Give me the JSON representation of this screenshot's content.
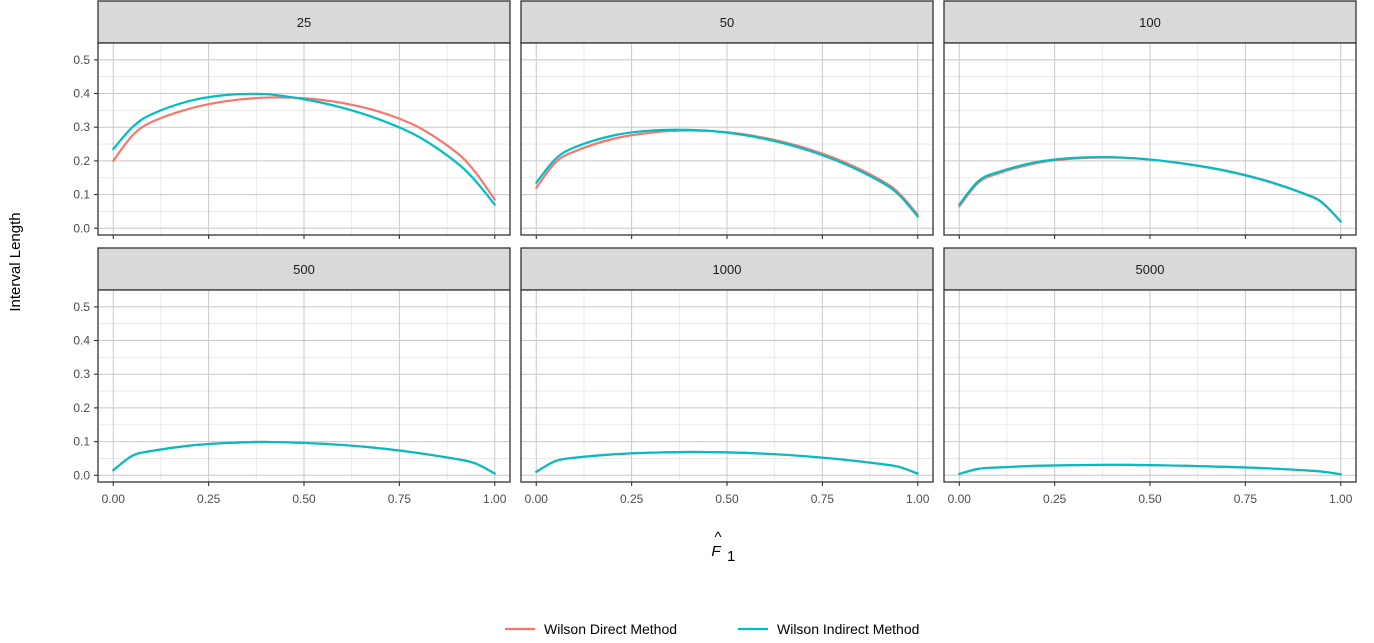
{
  "chart_data": {
    "type": "line",
    "facet_layout": "2 rows x 3 columns",
    "ylabel": "Interval Length",
    "xlabel_symbol": "F",
    "xlabel_subscript": "1",
    "xlim": [
      0,
      1
    ],
    "ylim": [
      0,
      0.5
    ],
    "x_ticks": [
      "0.00",
      "0.25",
      "0.50",
      "0.75",
      "1.00"
    ],
    "x_tick_values": [
      0,
      0.25,
      0.5,
      0.75,
      1.0
    ],
    "y_ticks": [
      "0.0",
      "0.1",
      "0.2",
      "0.3",
      "0.4",
      "0.5"
    ],
    "y_tick_values": [
      0,
      0.1,
      0.2,
      0.3,
      0.4,
      0.5
    ],
    "grid": true,
    "legend_position": "bottom",
    "series_styles": [
      {
        "name": "Wilson Direct Method",
        "color": "#F8766D"
      },
      {
        "name": "Wilson Indirect Method",
        "color": "#00BFC4"
      }
    ],
    "x": [
      0,
      0.05,
      0.1,
      0.2,
      0.3,
      0.4,
      0.5,
      0.6,
      0.7,
      0.8,
      0.9,
      0.95,
      1.0
    ],
    "panels": [
      {
        "label": "25",
        "series": [
          {
            "name": "Wilson Direct Method",
            "values": [
              0.2,
              0.275,
              0.315,
              0.355,
              0.378,
              0.388,
              0.386,
              0.372,
              0.345,
              0.3,
              0.225,
              0.165,
              0.085
            ]
          },
          {
            "name": "Wilson Indirect Method",
            "values": [
              0.235,
              0.3,
              0.338,
              0.378,
              0.396,
              0.398,
              0.383,
              0.358,
              0.322,
              0.272,
              0.195,
              0.14,
              0.07
            ]
          }
        ]
      },
      {
        "label": "50",
        "series": [
          {
            "name": "Wilson Direct Method",
            "values": [
              0.12,
              0.195,
              0.228,
              0.265,
              0.284,
              0.29,
              0.285,
              0.268,
              0.24,
              0.2,
              0.145,
              0.105,
              0.04
            ]
          },
          {
            "name": "Wilson Indirect Method",
            "values": [
              0.135,
              0.205,
              0.24,
              0.275,
              0.29,
              0.292,
              0.284,
              0.265,
              0.236,
              0.195,
              0.14,
              0.1,
              0.035
            ]
          }
        ]
      },
      {
        "label": "100",
        "series": [
          {
            "name": "Wilson Direct Method",
            "values": [
              0.065,
              0.135,
              0.162,
              0.193,
              0.207,
              0.21,
              0.204,
              0.19,
              0.171,
              0.143,
              0.105,
              0.078,
              0.02
            ]
          },
          {
            "name": "Wilson Indirect Method",
            "values": [
              0.07,
              0.14,
              0.166,
              0.196,
              0.209,
              0.211,
              0.204,
              0.19,
              0.17,
              0.142,
              0.104,
              0.077,
              0.02
            ]
          }
        ]
      },
      {
        "label": "500",
        "series": [
          {
            "name": "Wilson Direct Method",
            "values": [
              0.015,
              0.058,
              0.072,
              0.088,
              0.096,
              0.099,
              0.096,
              0.09,
              0.08,
              0.066,
              0.048,
              0.035,
              0.005
            ]
          },
          {
            "name": "Wilson Indirect Method",
            "values": [
              0.015,
              0.058,
              0.072,
              0.088,
              0.096,
              0.099,
              0.096,
              0.09,
              0.08,
              0.066,
              0.048,
              0.035,
              0.005
            ]
          }
        ]
      },
      {
        "label": "1000",
        "series": [
          {
            "name": "Wilson Direct Method",
            "values": [
              0.01,
              0.042,
              0.052,
              0.062,
              0.067,
              0.069,
              0.068,
              0.064,
              0.057,
              0.047,
              0.034,
              0.025,
              0.005
            ]
          },
          {
            "name": "Wilson Indirect Method",
            "values": [
              0.01,
              0.042,
              0.052,
              0.062,
              0.067,
              0.069,
              0.068,
              0.064,
              0.057,
              0.047,
              0.034,
              0.025,
              0.005
            ]
          }
        ]
      },
      {
        "label": "5000",
        "series": [
          {
            "name": "Wilson Direct Method",
            "values": [
              0.004,
              0.019,
              0.023,
              0.028,
              0.03,
              0.031,
              0.03,
              0.028,
              0.025,
              0.021,
              0.015,
              0.011,
              0.003
            ]
          },
          {
            "name": "Wilson Indirect Method",
            "values": [
              0.004,
              0.019,
              0.023,
              0.028,
              0.03,
              0.031,
              0.03,
              0.028,
              0.025,
              0.021,
              0.015,
              0.011,
              0.003
            ]
          }
        ]
      }
    ]
  }
}
